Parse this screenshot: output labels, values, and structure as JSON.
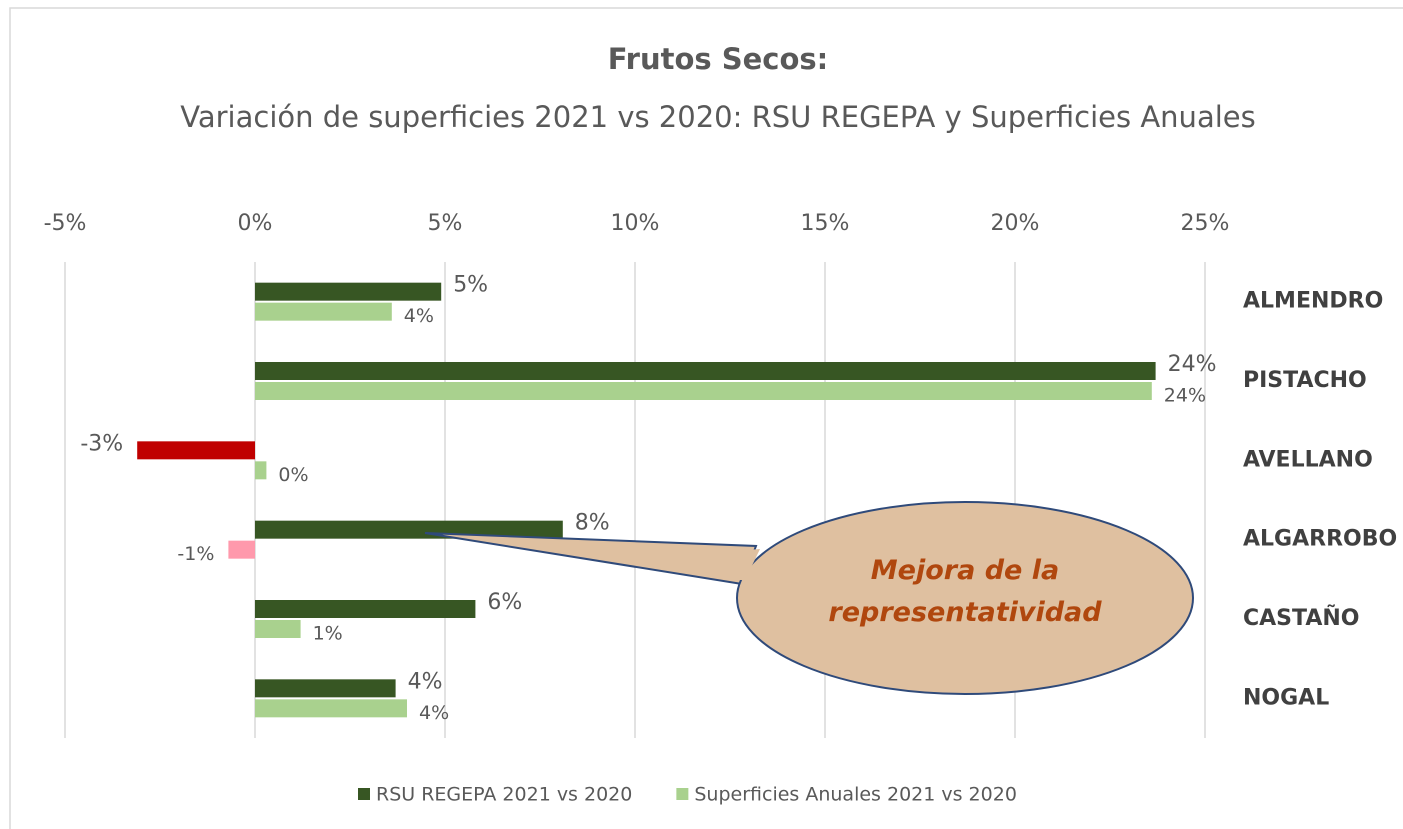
{
  "chart_data": {
    "type": "barh",
    "title": "Frutos Secos:",
    "subtitle": "Variación de superficies 2021 vs 2020: RSU REGEPA y Superficies Anuales",
    "categories": [
      "ALMENDRO",
      "PISTACHO",
      "AVELLANO",
      "ALGARROBO",
      "CASTAÑO",
      "NOGAL"
    ],
    "series": [
      {
        "name": "RSU REGEPA 2021 vs 2020",
        "color": "#375623",
        "negative_color": "#c00000",
        "values": [
          4.9,
          23.7,
          -3.1,
          8.1,
          5.8,
          3.7
        ],
        "value_labels": [
          "5%",
          "24%",
          "-3%",
          "8%",
          "6%",
          "4%"
        ]
      },
      {
        "name": "Superficies Anuales 2021 vs 2020",
        "color": "#a9d18e",
        "negative_color": "#ff99ac",
        "values": [
          3.6,
          23.6,
          0.3,
          -0.7,
          1.2,
          4.0
        ],
        "value_labels": [
          "4%",
          "24%",
          "0%",
          "-1%",
          "1%",
          "4%"
        ]
      }
    ],
    "xlim": [
      -5,
      25
    ],
    "xticks": [
      {
        "value": -5,
        "label": "-5%"
      },
      {
        "value": 0,
        "label": "0%"
      },
      {
        "value": 5,
        "label": "5%"
      },
      {
        "value": 10,
        "label": "10%"
      },
      {
        "value": 15,
        "label": "15%"
      },
      {
        "value": 20,
        "label": "20%"
      },
      {
        "value": 25,
        "label": "25%"
      }
    ],
    "grid": true,
    "legend": "bottom",
    "annotation": "Mejora de la representatividad"
  }
}
